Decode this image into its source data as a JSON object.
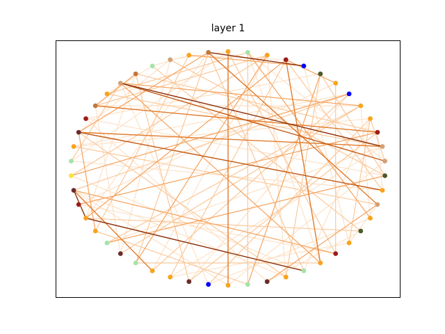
{
  "title": "layer 1",
  "colors": {
    "edge_palette": [
      "#fde2c8",
      "#fbc89a",
      "#f5a25d",
      "#e07b2c",
      "#c25a14",
      "#8a2e08"
    ],
    "node_palette": [
      "#f9a31b",
      "#a5e3a7",
      "#9c1c1c",
      "#0000ff",
      "#4a5a2c",
      "#d3a077",
      "#c1773c",
      "#6b2c2c",
      "#fde23a"
    ]
  },
  "graph": {
    "node_colors": [
      "#f9a31b",
      "#a5e3a7",
      "#f9a31b",
      "#9c1c1c",
      "#0000ff",
      "#4a5a2c",
      "#f9a31b",
      "#0000ff",
      "#f9a31b",
      "#f9a31b",
      "#9c1c1c",
      "#d3a077",
      "#d3a077",
      "#4a5a2c",
      "#f9a31b",
      "#d3a077",
      "#f9a31b",
      "#4a5a2c",
      "#f9a31b",
      "#9c1c1c",
      "#f9a31b",
      "#a5e3a7",
      "#f9a31b",
      "#6b2c2c",
      "#a5e3a7",
      "#f9a31b",
      "#0000ff",
      "#6b2c2c",
      "#f9a31b",
      "#f9a31b",
      "#a5e3a7",
      "#6b2c2c",
      "#a5e3a7",
      "#f9a31b",
      "#f9a31b",
      "#9c1c1c",
      "#6b2c2c",
      "#fde23a",
      "#a5e3a7",
      "#f9a31b",
      "#6b2c2c",
      "#9c1c1c",
      "#c1773c",
      "#f9a31b",
      "#d3a077",
      "#c1773c",
      "#a5e3a7",
      "#d3a077",
      "#f9a31b",
      "#c1773c"
    ],
    "edges": [
      [
        49,
        4,
        5
      ],
      [
        49,
        15,
        3
      ],
      [
        49,
        30,
        1
      ],
      [
        49,
        40,
        2
      ],
      [
        49,
        34,
        0
      ],
      [
        49,
        21,
        1
      ],
      [
        44,
        11,
        5
      ],
      [
        44,
        12,
        4
      ],
      [
        44,
        20,
        2
      ],
      [
        44,
        38,
        1
      ],
      [
        44,
        8,
        2
      ],
      [
        44,
        26,
        0
      ],
      [
        40,
        11,
        3
      ],
      [
        40,
        14,
        4
      ],
      [
        40,
        22,
        1
      ],
      [
        40,
        47,
        0
      ],
      [
        40,
        33,
        2
      ],
      [
        36,
        34,
        5
      ],
      [
        36,
        29,
        3
      ],
      [
        36,
        7,
        1
      ],
      [
        36,
        19,
        2
      ],
      [
        36,
        25,
        0
      ],
      [
        34,
        21,
        5
      ],
      [
        34,
        3,
        2
      ],
      [
        34,
        17,
        1
      ],
      [
        34,
        45,
        0
      ],
      [
        3,
        20,
        3
      ],
      [
        3,
        28,
        1
      ],
      [
        3,
        48,
        0
      ],
      [
        3,
        6,
        2
      ],
      [
        42,
        45,
        2
      ],
      [
        42,
        2,
        1
      ],
      [
        42,
        31,
        0
      ],
      [
        42,
        10,
        3
      ],
      [
        1,
        24,
        1
      ],
      [
        1,
        16,
        2
      ],
      [
        1,
        12,
        0
      ],
      [
        1,
        43,
        1
      ],
      [
        7,
        29,
        1
      ],
      [
        7,
        27,
        0
      ],
      [
        7,
        37,
        2
      ],
      [
        48,
        33,
        1
      ],
      [
        48,
        46,
        0
      ],
      [
        48,
        4,
        2
      ],
      [
        0,
        25,
        3
      ],
      [
        0,
        19,
        1
      ],
      [
        0,
        38,
        0
      ],
      [
        10,
        27,
        1
      ],
      [
        10,
        14,
        0
      ],
      [
        10,
        35,
        2
      ],
      [
        5,
        24,
        2
      ],
      [
        5,
        41,
        0
      ],
      [
        5,
        13,
        1
      ],
      [
        8,
        31,
        1
      ],
      [
        8,
        16,
        0
      ],
      [
        8,
        42,
        0
      ],
      [
        2,
        37,
        1
      ],
      [
        2,
        22,
        0
      ],
      [
        2,
        30,
        2
      ],
      [
        9,
        39,
        0
      ],
      [
        9,
        18,
        1
      ],
      [
        9,
        26,
        1
      ],
      [
        11,
        28,
        0
      ],
      [
        11,
        43,
        1
      ],
      [
        11,
        32,
        0
      ],
      [
        13,
        32,
        2
      ],
      [
        13,
        41,
        0
      ],
      [
        13,
        47,
        1
      ],
      [
        15,
        39,
        1
      ],
      [
        15,
        18,
        0
      ],
      [
        15,
        23,
        2
      ],
      [
        17,
        23,
        0
      ],
      [
        17,
        46,
        1
      ],
      [
        19,
        35,
        0
      ],
      [
        19,
        6,
        1
      ],
      [
        20,
        1,
        0
      ],
      [
        20,
        30,
        1
      ],
      [
        21,
        37,
        0
      ],
      [
        21,
        9,
        0
      ],
      [
        22,
        5,
        1
      ],
      [
        22,
        36,
        0
      ],
      [
        23,
        41,
        0
      ],
      [
        24,
        33,
        1
      ],
      [
        25,
        12,
        0
      ],
      [
        26,
        16,
        0
      ],
      [
        27,
        45,
        1
      ],
      [
        28,
        18,
        0
      ],
      [
        29,
        2,
        0
      ],
      [
        31,
        47,
        0
      ],
      [
        32,
        8,
        1
      ],
      [
        35,
        6,
        0
      ],
      [
        38,
        14,
        0
      ],
      [
        39,
        7,
        0
      ],
      [
        43,
        46,
        0
      ],
      [
        45,
        10,
        1
      ],
      [
        47,
        0,
        0
      ],
      [
        12,
        9,
        1
      ],
      [
        14,
        3,
        1
      ],
      [
        18,
        4,
        0
      ]
    ]
  }
}
